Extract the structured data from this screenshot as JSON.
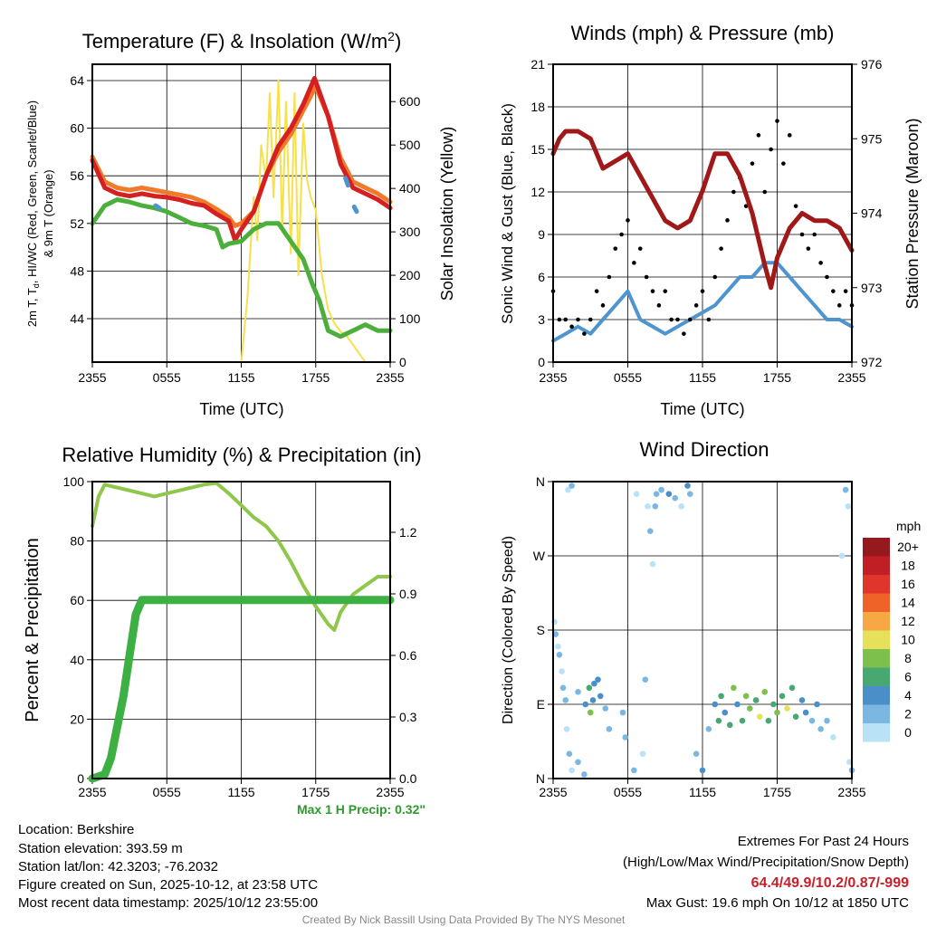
{
  "footer": {
    "location": "Location: Berkshire",
    "elevation": "Station elevation: 393.59 m",
    "latlon": "Station lat/lon: 42.3203; -76.2032",
    "created": "Figure created on Sun, 2025-10-12, at 23:58 UTC",
    "recent": "Most recent data timestamp: 2025/10/12 23:55:00",
    "extremes_title": "Extremes For Past 24 Hours",
    "extremes_sub": "(High/Low/Max Wind/Precipitation/Snow Depth)",
    "extremes_values": "64.4/49.9/10.2/0.87/-999",
    "max_gust": "Max Gust: 19.6 mph On 10/12 at 1850 UTC",
    "credit": "Created By Nick Bassill Using Data Provided By The NYS Mesonet",
    "max_precip": "Max 1 H Precip: 0.32\""
  },
  "colorbar": {
    "unit": "mph",
    "bins": [
      {
        "label": "20+",
        "color": "#961a1d"
      },
      {
        "label": "18",
        "color": "#c11f26"
      },
      {
        "label": "16",
        "color": "#e0352a"
      },
      {
        "label": "14",
        "color": "#ef6228"
      },
      {
        "label": "12",
        "color": "#f7a845"
      },
      {
        "label": "10",
        "color": "#e7e05a"
      },
      {
        "label": "8",
        "color": "#7dc04c"
      },
      {
        "label": "6",
        "color": "#48a872"
      },
      {
        "label": "4",
        "color": "#4a8fc8"
      },
      {
        "label": "2",
        "color": "#7ab8e3"
      },
      {
        "label": "0",
        "color": "#b9e2f7"
      }
    ]
  },
  "chart_data": [
    {
      "type": "line",
      "title": "Temperature (F) & Insolation (W/m",
      "title_sup": "2",
      "title_end": ")",
      "xlabel": "Time (UTC)",
      "xticks": [
        "2355",
        "0555",
        "1155",
        "1755",
        "2355"
      ],
      "xlim": [
        0,
        24
      ],
      "left_axis": {
        "label1": "2m T, T",
        "label_sub": "d",
        "label2": ", HI/WC (Red, Green, Scarlet/Blue)",
        "label3": "& 9m T (Orange)",
        "range": [
          40.35,
          65.37
        ],
        "ticks": [
          44,
          48,
          52,
          56,
          60,
          64
        ]
      },
      "right_axis": {
        "label": "Solar Insolation (Yellow)",
        "range": [
          0,
          686
        ],
        "ticks": [
          0,
          100,
          200,
          300,
          400,
          500,
          600
        ]
      },
      "series": [
        {
          "name": "Solar Insolation",
          "axis": "right",
          "color": "#f6e04b",
          "width": 2,
          "x": [
            0,
            12,
            12.5,
            13,
            13.3,
            13.6,
            14,
            14.3,
            14.6,
            15,
            15.3,
            15.6,
            16,
            16.3,
            16.6,
            17,
            17.3,
            17.6,
            18,
            18.5,
            19,
            19.5,
            20,
            20.5,
            21,
            21.5,
            22,
            24
          ],
          "y": [
            0,
            0,
            150,
            380,
            280,
            500,
            420,
            620,
            380,
            650,
            300,
            600,
            250,
            620,
            200,
            550,
            420,
            380,
            350,
            200,
            120,
            90,
            70,
            60,
            40,
            20,
            0,
            0
          ]
        },
        {
          "name": "9m T",
          "axis": "left",
          "color": "#f07a2a",
          "width": 5,
          "x": [
            0,
            1,
            2,
            3,
            4,
            5,
            6,
            7,
            8,
            9,
            10,
            11,
            11.5,
            12,
            13,
            14,
            15,
            16,
            17,
            18,
            19,
            20,
            21,
            22,
            23,
            24
          ],
          "y": [
            57.6,
            55.5,
            55,
            54.8,
            55,
            54.8,
            54.6,
            54.4,
            54.2,
            53.8,
            53.2,
            52.5,
            51.8,
            52,
            53,
            56,
            58,
            59.5,
            61.5,
            63.5,
            61,
            57.5,
            55.5,
            55,
            54.5,
            53.8
          ]
        },
        {
          "name": "2m T",
          "axis": "left",
          "color": "#d42020",
          "width": 5,
          "x": [
            0,
            1,
            2,
            3,
            4,
            5,
            6,
            7,
            8,
            9,
            10,
            11,
            11.5,
            12,
            13,
            14,
            15,
            16,
            17,
            17.9,
            19,
            20,
            21,
            22,
            23,
            24
          ],
          "y": [
            57.3,
            55,
            54.5,
            54.3,
            54.5,
            54.3,
            54.2,
            54,
            53.7,
            53.5,
            52.8,
            52.2,
            50.6,
            51.5,
            53,
            56,
            58.5,
            60,
            62,
            64.2,
            61,
            57,
            55,
            54.5,
            54,
            53.3
          ]
        },
        {
          "name": "Dewpoint",
          "axis": "left",
          "color": "#4caf3c",
          "width": 5,
          "x": [
            0,
            1,
            2,
            3,
            4,
            5,
            6,
            7,
            8,
            9,
            10,
            10.5,
            11,
            12,
            13,
            14,
            15,
            16,
            17,
            17.7,
            18.3,
            19,
            20,
            21,
            22,
            23,
            24
          ],
          "y": [
            52,
            53.5,
            54,
            53.8,
            53.5,
            53.3,
            53,
            52.5,
            52,
            51.8,
            51.5,
            50,
            50.3,
            50.5,
            51.5,
            52,
            52,
            50.5,
            49,
            47,
            45.5,
            43,
            42.5,
            43,
            43.5,
            43,
            43
          ]
        },
        {
          "name": "HI/WC",
          "axis": "left",
          "color": "#4d94d0",
          "width": 5,
          "x": [
            5.1,
            5.4,
            null,
            20.4,
            20.6,
            null,
            21.1,
            21.3
          ],
          "y": [
            53.5,
            53.3,
            null,
            55.8,
            55.2,
            null,
            53.4,
            53.0
          ]
        }
      ]
    },
    {
      "type": "line",
      "title": "Winds (mph) & Pressure (mb)",
      "xlabel": "Time (UTC)",
      "xticks": [
        "2355",
        "0555",
        "1155",
        "1755",
        "2355"
      ],
      "xlim": [
        0,
        24
      ],
      "left_axis": {
        "label": "Sonic Wind & Gust (Blue, Black)",
        "range": [
          0,
          21
        ],
        "ticks": [
          0,
          3,
          6,
          9,
          12,
          15,
          18,
          21
        ]
      },
      "right_axis": {
        "label": "Station Pressure (Maroon)",
        "range": [
          972,
          976
        ],
        "ticks": [
          972,
          973,
          974,
          975,
          976
        ]
      },
      "series": [
        {
          "name": "Sonic Wind",
          "axis": "left",
          "color": "#4d94d0",
          "width": 4,
          "x": [
            0,
            1,
            2,
            3,
            4,
            5,
            6,
            7,
            8,
            9,
            10,
            11,
            12,
            13,
            14,
            15,
            16,
            17,
            18,
            19,
            20,
            21,
            22,
            23,
            24
          ],
          "y": [
            1.5,
            2,
            2.5,
            2,
            3,
            4,
            5,
            3,
            2.5,
            2,
            2.5,
            3,
            3.5,
            4,
            5,
            6,
            6,
            7,
            7,
            6,
            5,
            4,
            3,
            3,
            2.5
          ]
        },
        {
          "name": "Gust",
          "axis": "left",
          "color": "#000000",
          "kind": "scatter",
          "r": 2.3,
          "x": [
            0,
            0.5,
            1,
            1.5,
            2,
            2.5,
            3,
            3.5,
            4,
            4.5,
            5,
            5.5,
            6,
            6.5,
            7,
            7.5,
            8,
            8.5,
            9,
            9.5,
            10,
            10.5,
            11,
            11.5,
            12,
            12.5,
            13,
            13.5,
            14,
            14.5,
            15,
            15.5,
            16,
            16.5,
            17,
            17.5,
            18,
            18.5,
            19,
            19.5,
            20,
            20.5,
            21,
            21.5,
            22,
            22.5,
            23,
            23.5,
            24
          ],
          "y": [
            5,
            3,
            3,
            2.5,
            3,
            2,
            3,
            5,
            4,
            6,
            8,
            9,
            10,
            7,
            8,
            6,
            5,
            4,
            5,
            3,
            3,
            2,
            3,
            4,
            5,
            3,
            6,
            8,
            10,
            12,
            13,
            11,
            14,
            16,
            12,
            15,
            17,
            14,
            16,
            11,
            9,
            8,
            9,
            7,
            6,
            5,
            4,
            5,
            4
          ]
        },
        {
          "name": "Station Pressure",
          "axis": "right",
          "color": "#a01818",
          "width": 5,
          "x": [
            0,
            0.5,
            1,
            2,
            3,
            4,
            5,
            6,
            7,
            8,
            9,
            10,
            11,
            12,
            13,
            14,
            15,
            16,
            17,
            17.5,
            18,
            19,
            20,
            21,
            22,
            23,
            24
          ],
          "y": [
            974.8,
            975,
            975.1,
            975.1,
            975,
            974.6,
            974.7,
            974.8,
            974.5,
            974.2,
            973.9,
            973.8,
            973.9,
            974.3,
            974.8,
            974.8,
            974.5,
            974,
            973.3,
            973,
            973.4,
            973.8,
            974,
            973.9,
            973.9,
            973.8,
            973.5
          ]
        }
      ]
    },
    {
      "type": "line",
      "title": "Relative Humidity (%) & Precipitation (in)",
      "xticks": [
        "2355",
        "0555",
        "1155",
        "1755",
        "2355"
      ],
      "xlim": [
        0,
        24
      ],
      "left_axis": {
        "label": "Percent & Precipitation",
        "range": [
          0,
          100
        ],
        "ticks": [
          0,
          20,
          40,
          60,
          80,
          100
        ]
      },
      "right_axis": {
        "range": [
          0,
          1.447
        ],
        "ticks": [
          0.0,
          0.3,
          0.6,
          0.9,
          1.2
        ],
        "tick_labels": [
          "0.0",
          "0.3",
          "0.6",
          "0.9",
          "1.2"
        ]
      },
      "series": [
        {
          "name": "Relative Humidity",
          "axis": "left",
          "color": "#8fc74a",
          "width": 4,
          "x": [
            0,
            0.5,
            1,
            2,
            3,
            4,
            5,
            6,
            7,
            8,
            9,
            10,
            11,
            12,
            13,
            14,
            15,
            16,
            17,
            18,
            19,
            19.5,
            20,
            21,
            22,
            23,
            24
          ],
          "y": [
            85,
            95,
            99,
            98,
            97,
            96,
            95,
            96,
            97,
            98,
            99,
            99.5,
            96,
            92,
            88,
            85,
            80,
            73,
            65,
            58,
            52,
            50,
            56,
            62,
            65,
            68,
            68
          ]
        },
        {
          "name": "Precipitation",
          "axis": "right",
          "color": "#3cb043",
          "width": 9,
          "x": [
            0,
            1,
            1.5,
            2,
            2.5,
            3,
            3.5,
            4,
            4.5,
            24
          ],
          "y": [
            0,
            0.02,
            0.1,
            0.25,
            0.4,
            0.6,
            0.8,
            0.87,
            0.87,
            0.87
          ]
        }
      ]
    },
    {
      "type": "scatter",
      "title": "Wind Direction",
      "xticks": [
        "2355",
        "0555",
        "1155",
        "1755",
        "2355"
      ],
      "xlim": [
        0,
        24
      ],
      "left_axis": {
        "label": "Direction (Colored By Speed)",
        "range": [
          0,
          360
        ],
        "ticks": [
          0,
          90,
          180,
          270,
          360
        ],
        "tick_labels": [
          "N",
          "E",
          "S",
          "W",
          "N"
        ]
      },
      "points": [
        [
          0.1,
          190,
          1
        ],
        [
          0.2,
          175,
          2
        ],
        [
          0.4,
          160,
          1
        ],
        [
          0.5,
          150,
          2
        ],
        [
          0.7,
          130,
          1
        ],
        [
          0.8,
          110,
          3
        ],
        [
          1.0,
          95,
          2
        ],
        [
          1.1,
          60,
          1
        ],
        [
          1.3,
          30,
          2
        ],
        [
          1.5,
          10,
          1
        ],
        [
          1.2,
          350,
          1
        ],
        [
          1.5,
          355,
          3
        ],
        [
          2,
          105,
          3
        ],
        [
          2,
          20,
          2
        ],
        [
          2.5,
          5,
          3
        ],
        [
          2.6,
          90,
          4
        ],
        [
          2.9,
          110,
          6
        ],
        [
          3,
          80,
          8
        ],
        [
          3.2,
          95,
          5
        ],
        [
          3.3,
          115,
          4
        ],
        [
          3.6,
          120,
          4
        ],
        [
          3.8,
          100,
          4
        ],
        [
          4.2,
          85,
          3
        ],
        [
          4.5,
          60,
          2
        ],
        [
          5.6,
          80,
          2
        ],
        [
          5.8,
          50,
          3
        ],
        [
          6.5,
          10,
          2
        ],
        [
          6.7,
          345,
          1
        ],
        [
          7.2,
          30,
          1
        ],
        [
          7.4,
          120,
          2
        ],
        [
          7.6,
          330,
          1
        ],
        [
          7.8,
          300,
          2
        ],
        [
          8,
          260,
          1
        ],
        [
          8.2,
          330,
          2
        ],
        [
          8.3,
          345,
          3
        ],
        [
          8.7,
          350,
          2
        ],
        [
          9.3,
          345,
          4
        ],
        [
          9.8,
          340,
          2
        ],
        [
          10.3,
          330,
          1
        ],
        [
          10.8,
          355,
          4
        ],
        [
          11,
          345,
          2
        ],
        [
          11.5,
          30,
          2
        ],
        [
          12,
          10,
          4
        ],
        [
          12.5,
          60,
          3
        ],
        [
          13,
          90,
          4
        ],
        [
          13.3,
          70,
          6
        ],
        [
          13.5,
          100,
          7
        ],
        [
          13.8,
          80,
          4
        ],
        [
          14.2,
          65,
          6
        ],
        [
          14.5,
          110,
          8
        ],
        [
          14.8,
          90,
          5
        ],
        [
          15.2,
          70,
          6
        ],
        [
          15.5,
          100,
          8
        ],
        [
          15.8,
          85,
          9
        ],
        [
          16.3,
          95,
          7
        ],
        [
          16.6,
          75,
          10
        ],
        [
          17,
          105,
          8
        ],
        [
          17.3,
          70,
          7
        ],
        [
          17.7,
          90,
          6
        ],
        [
          18,
          80,
          8
        ],
        [
          18.4,
          100,
          7
        ],
        [
          18.8,
          85,
          10
        ],
        [
          19.2,
          110,
          7
        ],
        [
          19.5,
          75,
          6
        ],
        [
          20,
          95,
          5
        ],
        [
          20.3,
          80,
          4
        ],
        [
          20.8,
          70,
          3
        ],
        [
          21.2,
          90,
          4
        ],
        [
          21.5,
          60,
          2
        ],
        [
          22,
          70,
          3
        ],
        [
          22.5,
          50,
          1
        ],
        [
          23.2,
          270,
          1
        ],
        [
          23.5,
          350,
          2
        ],
        [
          23.7,
          330,
          1
        ],
        [
          23.8,
          20,
          1
        ],
        [
          24,
          10,
          2
        ]
      ]
    }
  ]
}
